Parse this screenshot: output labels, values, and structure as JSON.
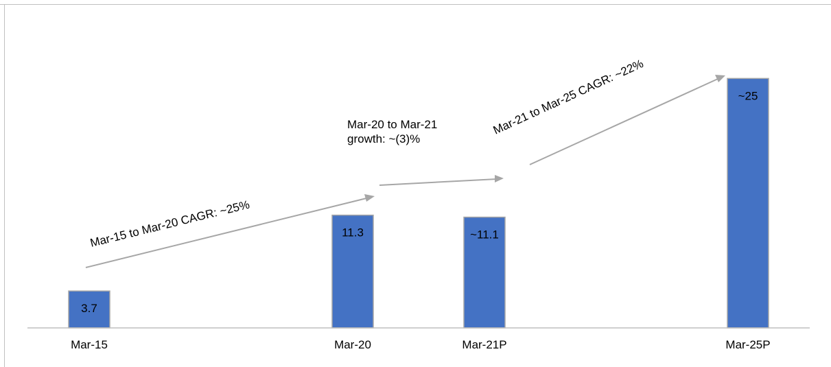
{
  "chart_data": {
    "type": "bar",
    "categories": [
      "Mar-15",
      "Mar-20",
      "Mar-21P",
      "Mar-25P"
    ],
    "values": [
      3.7,
      11.3,
      11.1,
      25
    ],
    "data_labels": [
      "3.7",
      "11.3",
      "~11.1",
      "~25"
    ],
    "title": "",
    "xlabel": "",
    "ylabel": "",
    "ylim": [
      0,
      27.5
    ],
    "grid": false,
    "bar_color": "#4472c4",
    "annotations": [
      {
        "id": "cagr_15_20",
        "text": "Mar-15 to Mar-20 CAGR: ~25%"
      },
      {
        "id": "growth_20_21",
        "line1": "Mar-20 to Mar-21",
        "line2": "growth: ~(3)%"
      },
      {
        "id": "cagr_21_25",
        "text": "Mar-21 to Mar-25 CAGR: ~22%"
      }
    ],
    "arrow_color": "#a6a6a6"
  }
}
